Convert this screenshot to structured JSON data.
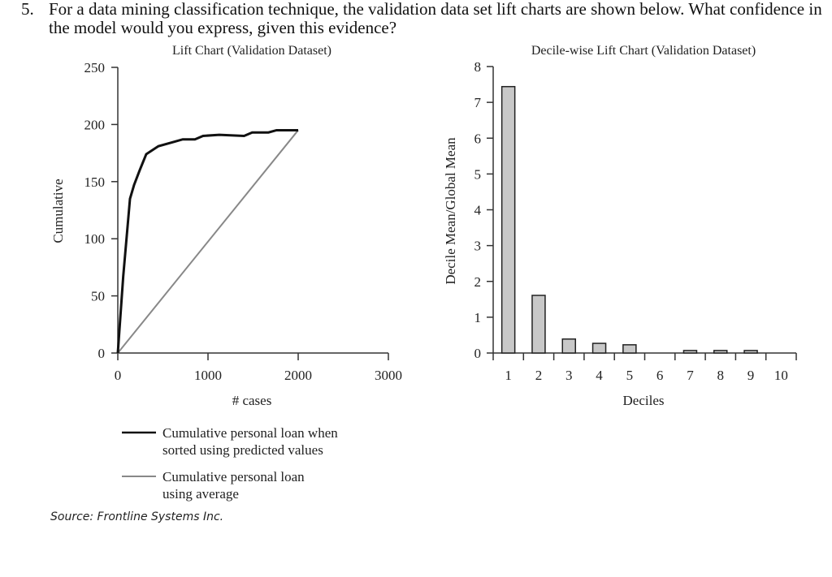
{
  "question": {
    "number": "5.",
    "text": "For a data mining classification technique, the validation data set lift charts are shown below. What confidence in the model would you express, given this evidence?"
  },
  "source": "Source: Frontline Systems Inc.",
  "chart_data": [
    {
      "type": "line",
      "title": "Lift Chart (Validation Dataset)",
      "xlabel": "# cases",
      "ylabel": "Cumulative",
      "xlim": [
        0,
        3000
      ],
      "ylim": [
        0,
        250
      ],
      "xticks": [
        "0",
        "1000",
        "2000",
        "3000"
      ],
      "yticks": [
        "0",
        "50",
        "100",
        "150",
        "200",
        "250"
      ],
      "grid": false,
      "legend_position": "bottom",
      "series": [
        {
          "name": "Cumulative personal loan when sorted using predicted values",
          "color": "#111111",
          "x": [
            0,
            60,
            135,
            180,
            243,
            315,
            450,
            630,
            720,
            855,
            945,
            1125,
            1400,
            1490,
            1670,
            1760,
            2000
          ],
          "y": [
            0,
            67,
            135,
            147,
            160,
            174,
            181,
            185,
            187,
            187,
            190,
            191,
            190,
            193,
            193,
            195,
            195
          ]
        },
        {
          "name": "Cumulative personal loan using average",
          "color": "#888888",
          "x": [
            0,
            2000
          ],
          "y": [
            0,
            195
          ]
        }
      ]
    },
    {
      "type": "bar",
      "title": "Decile-wise Lift Chart (Validation Dataset)",
      "xlabel": "Deciles",
      "ylabel": "Decile Mean/Global Mean",
      "ylim": [
        0,
        8
      ],
      "yticks": [
        "0",
        "1",
        "2",
        "3",
        "4",
        "5",
        "6",
        "7",
        "8"
      ],
      "grid": false,
      "categories": [
        "1",
        "2",
        "3",
        "4",
        "5",
        "6",
        "7",
        "8",
        "9",
        "10"
      ],
      "values": [
        7.44,
        1.61,
        0.39,
        0.27,
        0.23,
        0,
        0.07,
        0.07,
        0.07,
        0
      ],
      "bar_color": "#c8c8c8"
    }
  ]
}
